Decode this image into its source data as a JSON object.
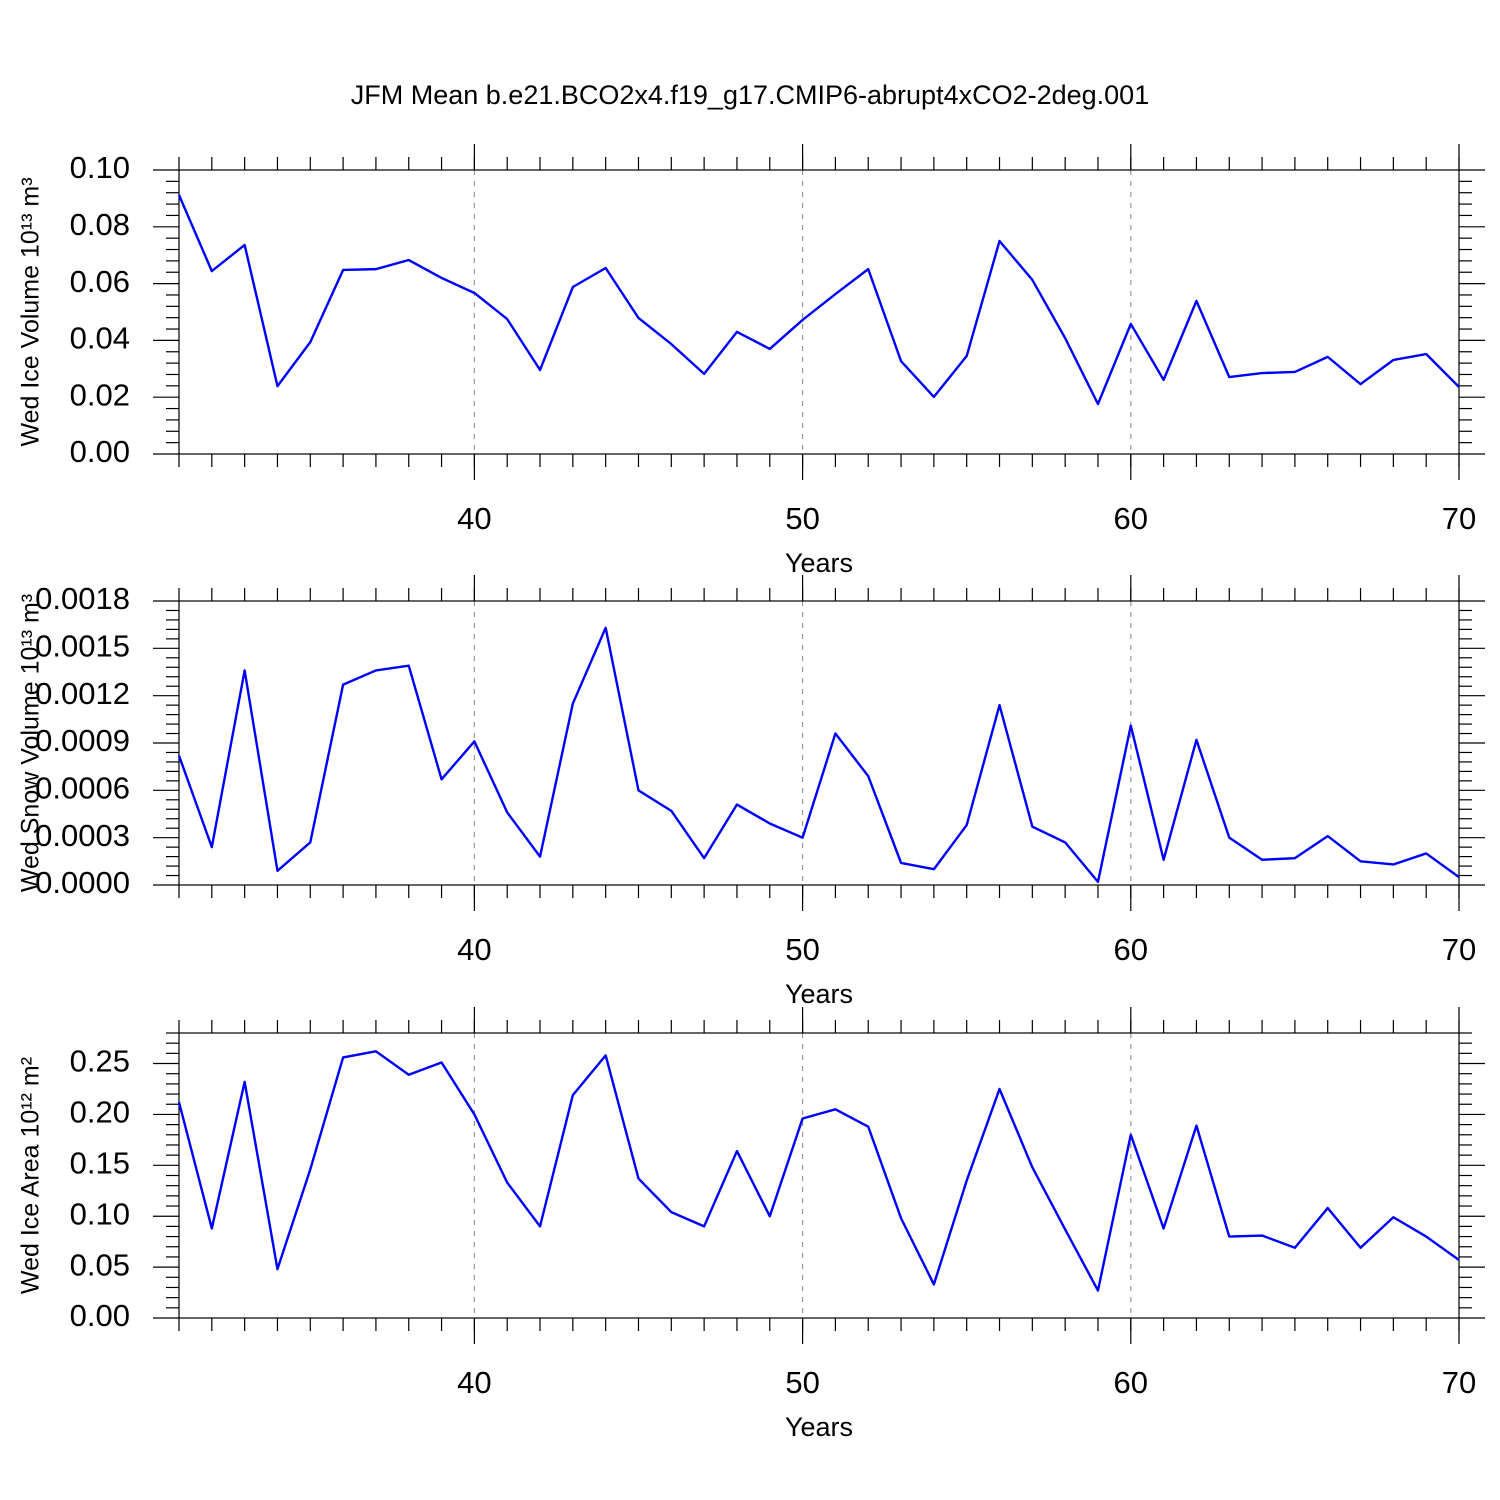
{
  "chart_data": [
    {
      "type": "line",
      "title": "JFM Mean b.e21.BCO2x4.f19_g17.CMIP6-abrupt4xCO2-2deg.001",
      "x_label": "Years",
      "y_label": "Wed Ice Volume 10¹³ m³",
      "color": "#0000ff",
      "grid": true,
      "x": [
        31,
        32,
        33,
        34,
        35,
        36,
        37,
        38,
        39,
        40,
        41,
        42,
        43,
        44,
        45,
        46,
        47,
        48,
        49,
        50,
        51,
        52,
        53,
        54,
        55,
        56,
        57,
        58,
        59,
        60,
        61,
        62,
        63,
        64,
        65,
        66,
        67,
        68,
        69,
        70
      ],
      "values": [
        0.0912,
        0.0644,
        0.0736,
        0.0239,
        0.0394,
        0.0648,
        0.0651,
        0.0683,
        0.062,
        0.0567,
        0.0475,
        0.0296,
        0.0588,
        0.0655,
        0.0479,
        0.0387,
        0.0282,
        0.043,
        0.037,
        0.0472,
        0.0563,
        0.0651,
        0.0327,
        0.0201,
        0.0345,
        0.075,
        0.0613,
        0.0408,
        0.0176,
        0.0458,
        0.0261,
        0.0539,
        0.0271,
        0.0285,
        0.0289,
        0.0342,
        0.0246,
        0.0331,
        0.0352,
        0.0236
      ],
      "xlim": [
        31,
        70
      ],
      "xticks": [
        40,
        50,
        60,
        70
      ],
      "ylim": [
        0,
        0.1
      ],
      "yticks": [
        {
          "value": 0,
          "label": "0.00"
        },
        0.02,
        0.04,
        0.06,
        0.08,
        {
          "value": 0.1,
          "label": "0.10"
        }
      ]
    },
    {
      "type": "line",
      "x_label": "Years",
      "y_label": "Wed Snow Volume 10¹³ m³",
      "color": "#0000ff",
      "grid": true,
      "x": [
        31,
        32,
        33,
        34,
        35,
        36,
        37,
        38,
        39,
        40,
        41,
        42,
        43,
        44,
        45,
        46,
        47,
        48,
        49,
        50,
        51,
        52,
        53,
        54,
        55,
        56,
        57,
        58,
        59,
        60,
        61,
        62,
        63,
        64,
        65,
        66,
        67,
        68,
        69,
        70
      ],
      "values": [
        0.00082,
        0.00024,
        0.00136,
        9e-05,
        0.00027,
        0.00127,
        0.00136,
        0.00139,
        0.00067,
        0.00091,
        0.00046,
        0.00018,
        0.00115,
        0.00163,
        0.0006,
        0.00047,
        0.00017,
        0.00051,
        0.00039,
        0.0003,
        0.00096,
        0.00069,
        0.00014,
        0.0001,
        0.00038,
        0.00114,
        0.00037,
        0.00027,
        2e-05,
        0.00101,
        0.00016,
        0.00092,
        0.0003,
        0.00016,
        0.00017,
        0.00031,
        0.00015,
        0.00013,
        0.0002,
        5e-05
      ],
      "xlim": [
        31,
        70
      ],
      "xticks": [
        40,
        50,
        60,
        70
      ],
      "ylim": [
        0,
        0.0018
      ],
      "yticks": [
        {
          "value": 0,
          "label": "0.0000"
        },
        0.0003,
        0.0006,
        0.0009,
        0.0012,
        0.0015,
        0.0018
      ]
    },
    {
      "type": "line",
      "x_label": "Years",
      "y_label": "Wed Ice Area 10¹² m²",
      "color": "#0000ff",
      "grid": true,
      "x": [
        31,
        32,
        33,
        34,
        35,
        36,
        37,
        38,
        39,
        40,
        41,
        42,
        43,
        44,
        45,
        46,
        47,
        48,
        49,
        50,
        51,
        52,
        53,
        54,
        55,
        56,
        57,
        58,
        59,
        60,
        61,
        62,
        63,
        64,
        65,
        66,
        67,
        68,
        69,
        70
      ],
      "values": [
        0.212,
        0.088,
        0.232,
        0.048,
        0.146,
        0.256,
        0.262,
        0.239,
        0.251,
        0.2,
        0.133,
        0.09,
        0.219,
        0.258,
        0.137,
        0.104,
        0.09,
        0.164,
        0.1,
        0.196,
        0.205,
        0.188,
        0.098,
        0.033,
        0.135,
        0.225,
        0.148,
        0.087,
        0.027,
        0.18,
        0.088,
        0.189,
        0.08,
        0.081,
        0.069,
        0.108,
        0.069,
        0.099,
        0.08,
        0.057
      ],
      "xlim": [
        31,
        70
      ],
      "xticks": [
        40,
        50,
        60,
        70
      ],
      "ylim": [
        0,
        0.28
      ],
      "yticks": [
        {
          "value": 0,
          "label": "0.00"
        },
        0.05,
        {
          "value": 0.1,
          "label": "0.10"
        },
        0.15,
        {
          "value": 0.2,
          "label": "0.20"
        },
        0.25
      ]
    }
  ]
}
